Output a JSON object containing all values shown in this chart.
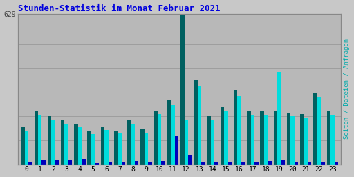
{
  "title": "Stunden-Statistik im Monat Februar 2021",
  "title_color": "#0000dd",
  "ylabel": "Seiten / Dateien / Anfragen",
  "ylabel_color": "#00aaaa",
  "background_color": "#c8c8c8",
  "plot_bg_color": "#b8b8b8",
  "ylim": [
    0,
    629
  ],
  "hours": [
    0,
    1,
    2,
    3,
    4,
    5,
    6,
    7,
    8,
    9,
    10,
    11,
    12,
    13,
    14,
    15,
    16,
    17,
    18,
    19,
    20,
    21,
    22,
    23
  ],
  "series1_color": "#006060",
  "series2_color": "#00dddd",
  "series3_color": "#0000bb",
  "series1": [
    155,
    220,
    200,
    185,
    170,
    140,
    155,
    140,
    185,
    145,
    225,
    270,
    629,
    350,
    200,
    240,
    310,
    225,
    220,
    220,
    215,
    210,
    300,
    220
  ],
  "series2": [
    140,
    205,
    188,
    170,
    158,
    125,
    142,
    128,
    170,
    132,
    210,
    248,
    188,
    325,
    185,
    222,
    285,
    205,
    205,
    385,
    200,
    192,
    278,
    205
  ],
  "series3": [
    10,
    16,
    16,
    18,
    22,
    6,
    10,
    10,
    13,
    10,
    13,
    118,
    38,
    10,
    10,
    12,
    10,
    10,
    13,
    16,
    10,
    7,
    10,
    10
  ]
}
